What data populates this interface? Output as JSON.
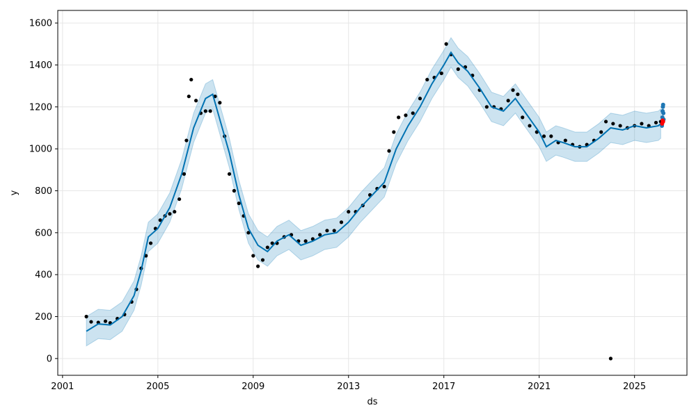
{
  "chart_data": {
    "type": "line",
    "title": "",
    "xlabel": "ds",
    "ylabel": "y",
    "xlim": [
      2000.8,
      2027.2
    ],
    "ylim": [
      -80,
      1660
    ],
    "grid": true,
    "legend": "none",
    "x_ticks": [
      {
        "value": 2001,
        "label": "2001"
      },
      {
        "value": 2005,
        "label": "2005"
      },
      {
        "value": 2009,
        "label": "2009"
      },
      {
        "value": 2013,
        "label": "2013"
      },
      {
        "value": 2017,
        "label": "2017"
      },
      {
        "value": 2021,
        "label": "2021"
      },
      {
        "value": 2025,
        "label": "2025"
      }
    ],
    "y_ticks": [
      {
        "value": 0,
        "label": "0"
      },
      {
        "value": 200,
        "label": "200"
      },
      {
        "value": 400,
        "label": "400"
      },
      {
        "value": 600,
        "label": "600"
      },
      {
        "value": 800,
        "label": "800"
      },
      {
        "value": 1000,
        "label": "1000"
      },
      {
        "value": 1200,
        "label": "1200"
      },
      {
        "value": 1400,
        "label": "1400"
      },
      {
        "value": 1600,
        "label": "1600"
      }
    ],
    "colors": {
      "observed": "#000000",
      "forecast": "#0072B2",
      "interval": "#0072B2",
      "future_points": "#1f77b4",
      "highlight": "#ff0000",
      "grid": "#e6e6e6"
    },
    "series": [
      {
        "kind": "observed",
        "points": [
          [
            2002.0,
            200
          ],
          [
            2002.2,
            175
          ],
          [
            2002.5,
            172
          ],
          [
            2002.8,
            178
          ],
          [
            2003.0,
            170
          ],
          [
            2003.3,
            190
          ],
          [
            2003.6,
            210
          ],
          [
            2003.9,
            270
          ],
          [
            2004.1,
            330
          ],
          [
            2004.3,
            430
          ],
          [
            2004.5,
            490
          ],
          [
            2004.7,
            550
          ],
          [
            2004.9,
            620
          ],
          [
            2005.1,
            660
          ],
          [
            2005.3,
            680
          ],
          [
            2005.5,
            690
          ],
          [
            2005.7,
            700
          ],
          [
            2005.9,
            760
          ],
          [
            2006.1,
            880
          ],
          [
            2006.2,
            1040
          ],
          [
            2006.3,
            1250
          ],
          [
            2006.4,
            1330
          ],
          [
            2006.6,
            1230
          ],
          [
            2006.8,
            1170
          ],
          [
            2007.0,
            1180
          ],
          [
            2007.2,
            1180
          ],
          [
            2007.4,
            1250
          ],
          [
            2007.6,
            1220
          ],
          [
            2007.8,
            1060
          ],
          [
            2008.0,
            880
          ],
          [
            2008.2,
            800
          ],
          [
            2008.4,
            740
          ],
          [
            2008.6,
            680
          ],
          [
            2008.8,
            600
          ],
          [
            2009.0,
            490
          ],
          [
            2009.2,
            440
          ],
          [
            2009.4,
            470
          ],
          [
            2009.6,
            530
          ],
          [
            2009.8,
            550
          ],
          [
            2010.0,
            550
          ],
          [
            2010.3,
            580
          ],
          [
            2010.6,
            590
          ],
          [
            2010.9,
            560
          ],
          [
            2011.2,
            560
          ],
          [
            2011.5,
            570
          ],
          [
            2011.8,
            590
          ],
          [
            2012.1,
            610
          ],
          [
            2012.4,
            610
          ],
          [
            2012.7,
            650
          ],
          [
            2013.0,
            700
          ],
          [
            2013.3,
            700
          ],
          [
            2013.6,
            730
          ],
          [
            2013.9,
            780
          ],
          [
            2014.2,
            810
          ],
          [
            2014.5,
            820
          ],
          [
            2014.7,
            990
          ],
          [
            2014.9,
            1080
          ],
          [
            2015.1,
            1150
          ],
          [
            2015.4,
            1160
          ],
          [
            2015.7,
            1170
          ],
          [
            2016.0,
            1240
          ],
          [
            2016.3,
            1330
          ],
          [
            2016.6,
            1340
          ],
          [
            2016.9,
            1360
          ],
          [
            2017.1,
            1500
          ],
          [
            2017.3,
            1450
          ],
          [
            2017.6,
            1380
          ],
          [
            2017.9,
            1390
          ],
          [
            2018.2,
            1350
          ],
          [
            2018.5,
            1280
          ],
          [
            2018.8,
            1200
          ],
          [
            2019.1,
            1200
          ],
          [
            2019.4,
            1190
          ],
          [
            2019.7,
            1230
          ],
          [
            2019.9,
            1280
          ],
          [
            2020.1,
            1260
          ],
          [
            2020.3,
            1150
          ],
          [
            2020.6,
            1110
          ],
          [
            2020.9,
            1080
          ],
          [
            2021.2,
            1060
          ],
          [
            2021.5,
            1060
          ],
          [
            2021.8,
            1030
          ],
          [
            2022.1,
            1040
          ],
          [
            2022.4,
            1020
          ],
          [
            2022.7,
            1010
          ],
          [
            2023.0,
            1020
          ],
          [
            2023.3,
            1040
          ],
          [
            2023.6,
            1080
          ],
          [
            2023.8,
            1130
          ],
          [
            2024.1,
            1120
          ],
          [
            2024.4,
            1110
          ],
          [
            2024.7,
            1100
          ],
          [
            2025.0,
            1110
          ],
          [
            2025.3,
            1120
          ],
          [
            2025.6,
            1110
          ],
          [
            2025.9,
            1125
          ],
          [
            2026.1,
            1130
          ]
        ]
      },
      {
        "kind": "forecast",
        "points": [
          [
            2002.0,
            130
          ],
          [
            2002.5,
            165
          ],
          [
            2003.0,
            160
          ],
          [
            2003.5,
            200
          ],
          [
            2004.0,
            300
          ],
          [
            2004.3,
            420
          ],
          [
            2004.6,
            580
          ],
          [
            2005.0,
            620
          ],
          [
            2005.5,
            720
          ],
          [
            2006.0,
            880
          ],
          [
            2006.5,
            1100
          ],
          [
            2007.0,
            1240
          ],
          [
            2007.3,
            1260
          ],
          [
            2007.6,
            1140
          ],
          [
            2008.0,
            980
          ],
          [
            2008.4,
            780
          ],
          [
            2008.8,
            620
          ],
          [
            2009.2,
            540
          ],
          [
            2009.6,
            510
          ],
          [
            2010.0,
            560
          ],
          [
            2010.5,
            590
          ],
          [
            2011.0,
            540
          ],
          [
            2011.5,
            560
          ],
          [
            2012.0,
            590
          ],
          [
            2012.5,
            600
          ],
          [
            2013.0,
            650
          ],
          [
            2013.5,
            720
          ],
          [
            2014.0,
            780
          ],
          [
            2014.5,
            840
          ],
          [
            2015.0,
            1000
          ],
          [
            2015.5,
            1110
          ],
          [
            2016.0,
            1200
          ],
          [
            2016.5,
            1310
          ],
          [
            2017.0,
            1400
          ],
          [
            2017.3,
            1460
          ],
          [
            2017.6,
            1410
          ],
          [
            2018.0,
            1370
          ],
          [
            2018.5,
            1290
          ],
          [
            2019.0,
            1200
          ],
          [
            2019.5,
            1180
          ],
          [
            2020.0,
            1240
          ],
          [
            2020.5,
            1160
          ],
          [
            2021.0,
            1080
          ],
          [
            2021.3,
            1010
          ],
          [
            2021.7,
            1040
          ],
          [
            2022.0,
            1030
          ],
          [
            2022.5,
            1010
          ],
          [
            2023.0,
            1010
          ],
          [
            2023.5,
            1050
          ],
          [
            2024.0,
            1100
          ],
          [
            2024.5,
            1090
          ],
          [
            2025.0,
            1110
          ],
          [
            2025.5,
            1100
          ],
          [
            2026.0,
            1110
          ],
          [
            2026.1,
            1120
          ]
        ]
      },
      {
        "kind": "future",
        "points": [
          [
            2026.15,
            1110
          ],
          [
            2026.17,
            1150
          ],
          [
            2026.18,
            1180
          ],
          [
            2026.19,
            1200
          ],
          [
            2026.2,
            1210
          ],
          [
            2026.21,
            1170
          ],
          [
            2026.22,
            1140
          ]
        ]
      },
      {
        "kind": "highlight",
        "points": [
          [
            2026.16,
            1120
          ],
          [
            2026.18,
            1135
          ],
          [
            2026.2,
            1130
          ]
        ]
      },
      {
        "kind": "outlier",
        "points": [
          [
            2024.0,
            0
          ]
        ]
      }
    ],
    "interval_width": 70
  }
}
